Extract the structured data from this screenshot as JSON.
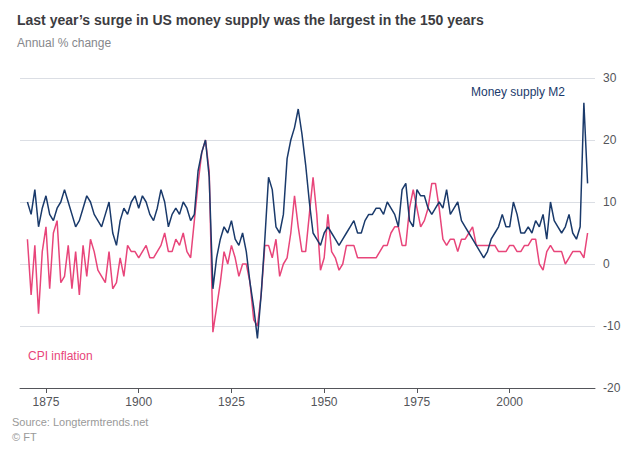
{
  "chart_data": {
    "type": "line",
    "title": "Last year’s surge in US money supply was the largest in the 150 years",
    "subtitle": "Annual % change",
    "source": "Source: Longtermtrends.net\n© FT",
    "xlim": [
      1868,
      2023
    ],
    "xticks": [
      1875,
      1900,
      1925,
      1950,
      1975,
      2000
    ],
    "ylim": [
      -20,
      30
    ],
    "yticks": [
      -20,
      -10,
      0,
      10,
      20,
      30
    ],
    "grid": true,
    "series": [
      {
        "name": "CPI inflation",
        "color": "#e8457a",
        "x": [
          1870,
          1871,
          1872,
          1873,
          1874,
          1875,
          1876,
          1877,
          1878,
          1879,
          1880,
          1881,
          1882,
          1883,
          1884,
          1885,
          1886,
          1887,
          1888,
          1889,
          1890,
          1891,
          1892,
          1893,
          1894,
          1895,
          1896,
          1897,
          1898,
          1899,
          1900,
          1901,
          1902,
          1903,
          1904,
          1905,
          1906,
          1907,
          1908,
          1909,
          1910,
          1911,
          1912,
          1913,
          1914,
          1915,
          1916,
          1917,
          1918,
          1919,
          1920,
          1921,
          1922,
          1923,
          1924,
          1925,
          1926,
          1927,
          1928,
          1929,
          1930,
          1931,
          1932,
          1933,
          1934,
          1935,
          1936,
          1937,
          1938,
          1939,
          1940,
          1941,
          1942,
          1943,
          1944,
          1945,
          1946,
          1947,
          1948,
          1949,
          1950,
          1951,
          1952,
          1953,
          1954,
          1955,
          1956,
          1957,
          1958,
          1959,
          1960,
          1961,
          1962,
          1963,
          1964,
          1965,
          1966,
          1967,
          1968,
          1969,
          1970,
          1971,
          1972,
          1973,
          1974,
          1975,
          1976,
          1977,
          1978,
          1979,
          1980,
          1981,
          1982,
          1983,
          1984,
          1985,
          1986,
          1987,
          1988,
          1989,
          1990,
          1991,
          1992,
          1993,
          1994,
          1995,
          1996,
          1997,
          1998,
          1999,
          2000,
          2001,
          2002,
          2003,
          2004,
          2005,
          2006,
          2007,
          2008,
          2009,
          2010,
          2011,
          2012,
          2013,
          2014,
          2015,
          2016,
          2017,
          2018,
          2019,
          2020,
          2021
        ],
        "values": [
          4,
          -5,
          3,
          -8,
          2,
          6,
          -4,
          5,
          7,
          -3,
          -2,
          3,
          -4,
          2,
          -5,
          3,
          -2,
          4,
          2,
          -1,
          -2,
          -3,
          2,
          -4,
          -3,
          1,
          -2,
          3,
          2,
          2,
          1,
          2,
          3,
          1,
          1,
          2,
          3,
          5,
          2,
          2,
          4,
          3,
          5,
          2,
          1,
          7,
          13,
          18,
          20,
          15,
          -11,
          -7,
          -3,
          2,
          0,
          3,
          1,
          -2,
          0,
          0,
          -3,
          -9,
          -10,
          -5,
          3,
          3,
          1,
          4,
          -2,
          0,
          1,
          5,
          11,
          6,
          2,
          2,
          8,
          14,
          8,
          -1,
          1,
          8,
          2,
          1,
          -1,
          0,
          3,
          3,
          3,
          1,
          1,
          1,
          1,
          1,
          1,
          2,
          3,
          3,
          5,
          6,
          6,
          3,
          3,
          9,
          12,
          9,
          6,
          7,
          9,
          13,
          13,
          9,
          4,
          3,
          4,
          4,
          2,
          4,
          4,
          5,
          6,
          3,
          3,
          3,
          3,
          3,
          3,
          2,
          2,
          2,
          3,
          3,
          2,
          2,
          3,
          3,
          4,
          4,
          0,
          -1,
          2,
          3,
          2,
          2,
          2,
          0,
          1,
          2,
          2,
          2,
          1,
          5
        ]
      },
      {
        "name": "Money supply M2",
        "color": "#1a3a6b",
        "x": [
          1870,
          1871,
          1872,
          1873,
          1874,
          1875,
          1876,
          1877,
          1878,
          1879,
          1880,
          1881,
          1882,
          1883,
          1884,
          1885,
          1886,
          1887,
          1888,
          1889,
          1890,
          1891,
          1892,
          1893,
          1894,
          1895,
          1896,
          1897,
          1898,
          1899,
          1900,
          1901,
          1902,
          1903,
          1904,
          1905,
          1906,
          1907,
          1908,
          1909,
          1910,
          1911,
          1912,
          1913,
          1914,
          1915,
          1916,
          1917,
          1918,
          1919,
          1920,
          1921,
          1922,
          1923,
          1924,
          1925,
          1926,
          1927,
          1928,
          1929,
          1930,
          1931,
          1932,
          1933,
          1934,
          1935,
          1936,
          1937,
          1938,
          1939,
          1940,
          1941,
          1942,
          1943,
          1944,
          1945,
          1946,
          1947,
          1948,
          1949,
          1950,
          1951,
          1952,
          1953,
          1954,
          1955,
          1956,
          1957,
          1958,
          1959,
          1960,
          1961,
          1962,
          1963,
          1964,
          1965,
          1966,
          1967,
          1968,
          1969,
          1970,
          1971,
          1972,
          1973,
          1974,
          1975,
          1976,
          1977,
          1978,
          1979,
          1980,
          1981,
          1982,
          1983,
          1984,
          1985,
          1986,
          1987,
          1988,
          1989,
          1990,
          1991,
          1992,
          1993,
          1994,
          1995,
          1996,
          1997,
          1998,
          1999,
          2000,
          2001,
          2002,
          2003,
          2004,
          2005,
          2006,
          2007,
          2008,
          2009,
          2010,
          2011,
          2012,
          2013,
          2014,
          2015,
          2016,
          2017,
          2018,
          2019,
          2020,
          2021
        ],
        "values": [
          10,
          8,
          12,
          6,
          9,
          11,
          8,
          7,
          9,
          10,
          12,
          10,
          8,
          6,
          7,
          9,
          11,
          10,
          8,
          7,
          6,
          8,
          10,
          5,
          3,
          7,
          9,
          8,
          10,
          11,
          9,
          11,
          10,
          8,
          7,
          9,
          12,
          10,
          6,
          8,
          9,
          8,
          10,
          9,
          7,
          8,
          15,
          18,
          20,
          14,
          -4,
          1,
          4,
          6,
          5,
          7,
          4,
          3,
          5,
          2,
          -3,
          -7,
          -12,
          -5,
          4,
          14,
          12,
          6,
          5,
          8,
          17,
          20,
          22,
          25,
          21,
          16,
          10,
          5,
          4,
          3,
          5,
          6,
          5,
          4,
          3,
          4,
          5,
          6,
          7,
          5,
          5,
          7,
          8,
          8,
          9,
          9,
          8,
          10,
          9,
          8,
          6,
          12,
          13,
          7,
          6,
          12,
          11,
          11,
          9,
          8,
          9,
          10,
          9,
          12,
          8,
          9,
          10,
          7,
          6,
          5,
          4,
          3,
          2,
          1,
          2,
          4,
          5,
          6,
          8,
          6,
          6,
          10,
          8,
          5,
          5,
          6,
          5,
          7,
          6,
          8,
          4,
          10,
          7,
          6,
          5,
          6,
          8,
          5,
          4,
          6,
          26,
          13
        ]
      }
    ]
  }
}
